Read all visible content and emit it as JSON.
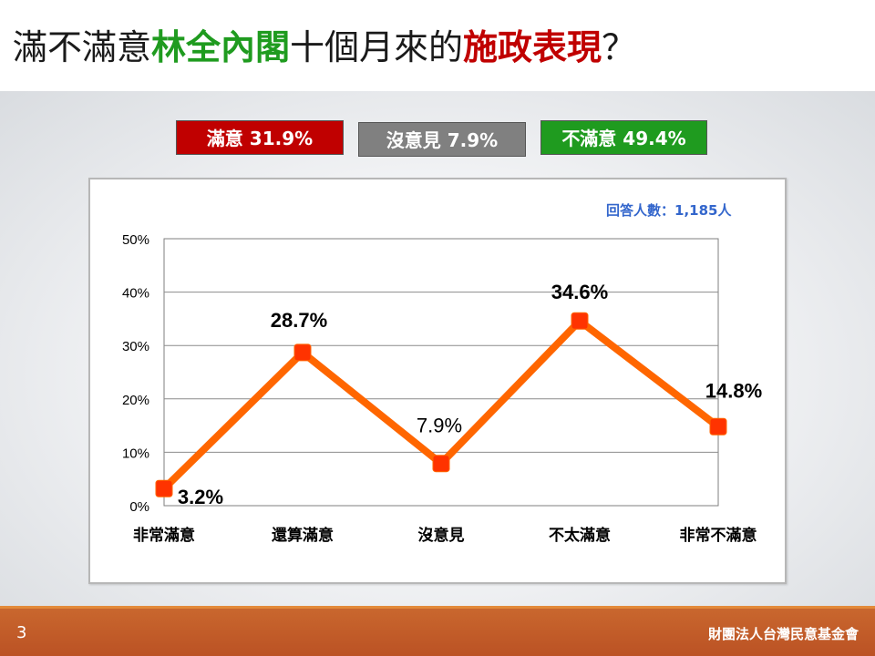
{
  "title": {
    "part1": "滿不滿意",
    "part2": "林全內閣",
    "part3": "十個月來的",
    "part4": "施政表現",
    "part5": "？"
  },
  "legend": {
    "satisfied": "滿意 31.9%",
    "no_opinion": "沒意見 7.9%",
    "dissatisfied": "不滿意 49.4%"
  },
  "colors": {
    "satisfied": "#c00000",
    "no_opinion": "#808080",
    "dissatisfied": "#1f9b1f",
    "line": "#ff6600",
    "marker": "#ff3300"
  },
  "respondents": "回答人數：1,185人",
  "footer": {
    "page_number": "3",
    "organization": "財團法人台灣民意基金會"
  },
  "chart_data": {
    "type": "line",
    "categories": [
      "非常滿意",
      "還算滿意",
      "沒意見",
      "不太滿意",
      "非常不滿意"
    ],
    "values": [
      3.2,
      28.7,
      7.9,
      34.6,
      14.8
    ],
    "data_labels": [
      "3.2%",
      "28.7%",
      "7.9%",
      "34.6%",
      "14.8%"
    ],
    "title": "",
    "xlabel": "",
    "ylabel": "",
    "ylim": [
      0,
      50
    ],
    "yticks": [
      0,
      10,
      20,
      30,
      40,
      50
    ],
    "ytick_labels": [
      "0%",
      "10%",
      "20%",
      "30%",
      "40%",
      "50%"
    ],
    "grid": true,
    "legend": "none"
  }
}
